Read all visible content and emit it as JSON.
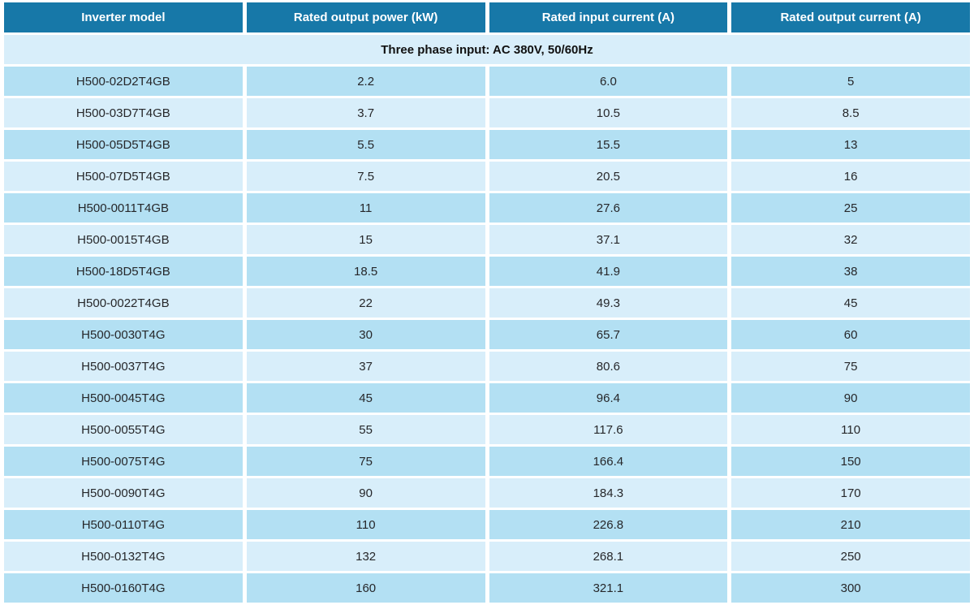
{
  "colors": {
    "header_bg": "#1778A8",
    "header_text": "#FFFFFF",
    "row_dark_bg": "#B3E0F3",
    "row_light_bg": "#D8EEFA",
    "section_bg": "#D8EEFA",
    "body_text": "#26272A",
    "section_text": "#111111",
    "gap": "#FFFFFF"
  },
  "table": {
    "headers": [
      "Inverter model",
      "Rated output power (kW)",
      "Rated input current (A)",
      "Rated output current (A)"
    ],
    "section_title": "Three phase input: AC 380V, 50/60Hz",
    "rows": [
      {
        "model": "H500-02D2T4GB",
        "output_power_kw": "2.2",
        "input_current_a": "6.0",
        "output_current_a": "5"
      },
      {
        "model": "H500-03D7T4GB",
        "output_power_kw": "3.7",
        "input_current_a": "10.5",
        "output_current_a": "8.5"
      },
      {
        "model": "H500-05D5T4GB",
        "output_power_kw": "5.5",
        "input_current_a": "15.5",
        "output_current_a": "13"
      },
      {
        "model": "H500-07D5T4GB",
        "output_power_kw": "7.5",
        "input_current_a": "20.5",
        "output_current_a": "16"
      },
      {
        "model": "H500-0011T4GB",
        "output_power_kw": "11",
        "input_current_a": "27.6",
        "output_current_a": "25"
      },
      {
        "model": "H500-0015T4GB",
        "output_power_kw": "15",
        "input_current_a": "37.1",
        "output_current_a": "32"
      },
      {
        "model": "H500-18D5T4GB",
        "output_power_kw": "18.5",
        "input_current_a": "41.9",
        "output_current_a": "38"
      },
      {
        "model": "H500-0022T4GB",
        "output_power_kw": "22",
        "input_current_a": "49.3",
        "output_current_a": "45"
      },
      {
        "model": "H500-0030T4G",
        "output_power_kw": "30",
        "input_current_a": "65.7",
        "output_current_a": "60"
      },
      {
        "model": "H500-0037T4G",
        "output_power_kw": "37",
        "input_current_a": "80.6",
        "output_current_a": "75"
      },
      {
        "model": "H500-0045T4G",
        "output_power_kw": "45",
        "input_current_a": "96.4",
        "output_current_a": "90"
      },
      {
        "model": "H500-0055T4G",
        "output_power_kw": "55",
        "input_current_a": "117.6",
        "output_current_a": "110"
      },
      {
        "model": "H500-0075T4G",
        "output_power_kw": "75",
        "input_current_a": "166.4",
        "output_current_a": "150"
      },
      {
        "model": "H500-0090T4G",
        "output_power_kw": "90",
        "input_current_a": "184.3",
        "output_current_a": "170"
      },
      {
        "model": "H500-0110T4G",
        "output_power_kw": "110",
        "input_current_a": "226.8",
        "output_current_a": "210"
      },
      {
        "model": "H500-0132T4G",
        "output_power_kw": "132",
        "input_current_a": "268.1",
        "output_current_a": "250"
      },
      {
        "model": "H500-0160T4G",
        "output_power_kw": "160",
        "input_current_a": "321.1",
        "output_current_a": "300"
      }
    ]
  }
}
